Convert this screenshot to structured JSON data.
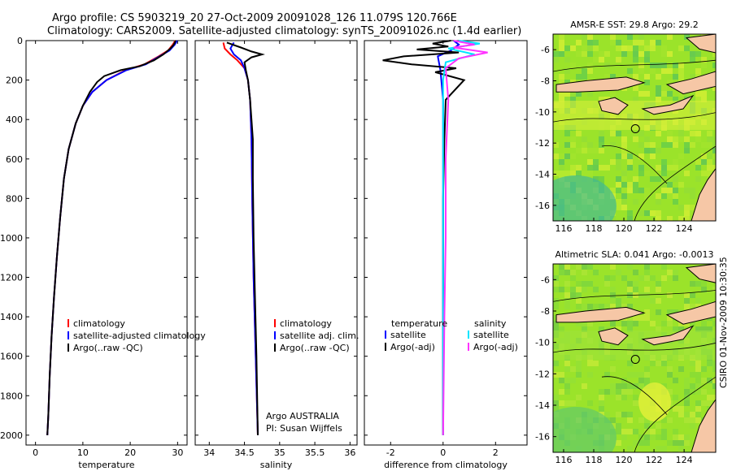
{
  "header": {
    "title_line1": "Argo profile: CS 5903219_20 27-Oct-2009 20091028_126 11.079S 120.766E",
    "title_line2": "Climatology: CARS2009. Satellite-adjusted climatology: synTS_20091026.nc (1.4d earlier)"
  },
  "colors": {
    "climatology": "#ff0000",
    "satellite": "#0000ff",
    "argo": "#000000",
    "sal_satellite": "#00e5ff",
    "sal_argo": "#ff33ff",
    "land": "#f6c7a6",
    "ocean_base": "#9be32a"
  },
  "chart_data": [
    {
      "type": "line",
      "name": "temperature-profile",
      "xlabel": "temperature",
      "ylabel": "",
      "xlim": [
        -2,
        32
      ],
      "ylim": [
        2050,
        0
      ],
      "xticks": [
        0,
        10,
        20,
        30
      ],
      "yticks": [
        0,
        200,
        400,
        600,
        800,
        1000,
        1200,
        1400,
        1600,
        1800,
        2000
      ],
      "legend": [
        "climatology",
        "satellite-adjusted climatology",
        "Argo(..raw -QC)"
      ],
      "series": [
        {
          "name": "climatology",
          "color": "#ff0000",
          "points": [
            [
              29.5,
              0
            ],
            [
              29,
              20
            ],
            [
              28,
              50
            ],
            [
              26,
              80
            ],
            [
              23,
              120
            ],
            [
              19,
              150
            ],
            [
              15,
              200
            ],
            [
              12,
              260
            ],
            [
              10,
              330
            ],
            [
              8.5,
              420
            ],
            [
              7,
              550
            ],
            [
              6,
              700
            ],
            [
              5.2,
              900
            ],
            [
              4.5,
              1100
            ],
            [
              3.9,
              1300
            ],
            [
              3.4,
              1500
            ],
            [
              3,
              1700
            ],
            [
              2.7,
              1900
            ],
            [
              2.5,
              2000
            ]
          ]
        },
        {
          "name": "satellite-adjusted climatology",
          "color": "#0000ff",
          "points": [
            [
              29.9,
              0
            ],
            [
              29.4,
              20
            ],
            [
              28.3,
              50
            ],
            [
              26.2,
              80
            ],
            [
              23.3,
              120
            ],
            [
              19.2,
              150
            ],
            [
              15,
              200
            ],
            [
              12,
              260
            ],
            [
              10,
              330
            ],
            [
              8.5,
              420
            ],
            [
              7,
              550
            ],
            [
              6,
              700
            ],
            [
              5.2,
              900
            ],
            [
              4.5,
              1100
            ],
            [
              3.9,
              1300
            ],
            [
              3.4,
              1500
            ],
            [
              3,
              1700
            ],
            [
              2.7,
              1900
            ],
            [
              2.5,
              2000
            ]
          ]
        },
        {
          "name": "Argo(..raw -QC)",
          "color": "#000000",
          "points": [
            [
              29.6,
              0
            ],
            [
              29.2,
              20
            ],
            [
              28.5,
              40
            ],
            [
              27,
              70
            ],
            [
              25,
              100
            ],
            [
              22,
              130
            ],
            [
              18,
              150
            ],
            [
              14.5,
              180
            ],
            [
              13,
              210
            ],
            [
              11.5,
              260
            ],
            [
              10,
              330
            ],
            [
              8.5,
              420
            ],
            [
              7,
              550
            ],
            [
              6,
              700
            ],
            [
              5.2,
              900
            ],
            [
              4.5,
              1100
            ],
            [
              3.9,
              1300
            ],
            [
              3.4,
              1500
            ],
            [
              3,
              1700
            ],
            [
              2.7,
              1900
            ],
            [
              2.5,
              2000
            ]
          ]
        }
      ]
    },
    {
      "type": "line",
      "name": "salinity-profile",
      "xlabel": "salinity",
      "xlim": [
        33.8,
        36.1
      ],
      "ylim": [
        2050,
        0
      ],
      "xticks": [
        34,
        34.5,
        35,
        35.5,
        36
      ],
      "legend": [
        "climatology",
        "satellite adj. clim.",
        "Argo(..raw -QC)"
      ],
      "series": [
        {
          "name": "climatology",
          "color": "#ff0000",
          "points": [
            [
              34.2,
              10
            ],
            [
              34.22,
              40
            ],
            [
              34.3,
              70
            ],
            [
              34.4,
              100
            ],
            [
              34.5,
              140
            ],
            [
              34.55,
              200
            ],
            [
              34.58,
              300
            ],
            [
              34.6,
              500
            ],
            [
              34.61,
              800
            ],
            [
              34.63,
              1200
            ],
            [
              34.66,
              1600
            ],
            [
              34.69,
              2000
            ]
          ]
        },
        {
          "name": "satellite adj. clim.",
          "color": "#0000ff",
          "points": [
            [
              34.35,
              10
            ],
            [
              34.3,
              40
            ],
            [
              34.35,
              70
            ],
            [
              34.45,
              100
            ],
            [
              34.5,
              140
            ],
            [
              34.55,
              200
            ],
            [
              34.58,
              300
            ],
            [
              34.6,
              500
            ],
            [
              34.61,
              800
            ],
            [
              34.63,
              1200
            ],
            [
              34.66,
              1600
            ],
            [
              34.69,
              2000
            ]
          ]
        },
        {
          "name": "Argo(..raw -QC)",
          "color": "#000000",
          "points": [
            [
              34.25,
              10
            ],
            [
              34.45,
              35
            ],
            [
              34.6,
              55
            ],
            [
              34.75,
              70
            ],
            [
              34.6,
              85
            ],
            [
              34.5,
              110
            ],
            [
              34.52,
              150
            ],
            [
              34.55,
              200
            ],
            [
              34.58,
              300
            ],
            [
              34.62,
              500
            ],
            [
              34.62,
              700
            ],
            [
              34.63,
              1000
            ],
            [
              34.65,
              1300
            ],
            [
              34.67,
              1600
            ],
            [
              34.69,
              2000
            ]
          ]
        }
      ],
      "annotation": [
        "Argo AUSTRALIA",
        "PI: Susan Wijffels"
      ]
    },
    {
      "type": "line",
      "name": "difference-profile",
      "xlabel": "difference from climatology",
      "xlim": [
        -3,
        3.2
      ],
      "ylim": [
        2050,
        0
      ],
      "xticks": [
        -2,
        0,
        2
      ],
      "legend_left_title": "temperature",
      "legend_right_title": "salinity",
      "legend": [
        "satellite",
        "Argo(-adj)",
        "satellite",
        "Argo(-adj)"
      ],
      "series": [
        {
          "name": "temperature satellite",
          "color": "#0000ff",
          "points": [
            [
              0.4,
              0
            ],
            [
              0.6,
              20
            ],
            [
              0.3,
              50
            ],
            [
              -0.2,
              80
            ],
            [
              -0.1,
              150
            ],
            [
              0,
              300
            ],
            [
              0,
              600
            ],
            [
              0,
              1000
            ],
            [
              0,
              1400
            ],
            [
              0,
              1800
            ],
            [
              0,
              2000
            ]
          ]
        },
        {
          "name": "temperature Argo(-adj)",
          "color": "#000000",
          "points": [
            [
              0.3,
              0
            ],
            [
              -0.4,
              15
            ],
            [
              0.2,
              30
            ],
            [
              -1,
              45
            ],
            [
              0.6,
              60
            ],
            [
              -1.5,
              80
            ],
            [
              -2.3,
              100
            ],
            [
              -1.2,
              120
            ],
            [
              0.5,
              140
            ],
            [
              -0.3,
              160
            ],
            [
              0.8,
              200
            ],
            [
              0.1,
              300
            ],
            [
              0.05,
              500
            ],
            [
              0,
              800
            ],
            [
              0,
              1200
            ],
            [
              0,
              1600
            ],
            [
              0,
              2000
            ]
          ]
        },
        {
          "name": "salinity satellite",
          "color": "#00e5ff",
          "points": [
            [
              0.6,
              0
            ],
            [
              1.4,
              15
            ],
            [
              0.2,
              40
            ],
            [
              1.2,
              70
            ],
            [
              0.1,
              110
            ],
            [
              0,
              200
            ],
            [
              0,
              500
            ],
            [
              0,
              900
            ],
            [
              0,
              1300
            ],
            [
              0,
              1700
            ],
            [
              0,
              2000
            ]
          ]
        },
        {
          "name": "salinity Argo(-adj)",
          "color": "#ff33ff",
          "points": [
            [
              0.4,
              0
            ],
            [
              1.2,
              20
            ],
            [
              0.4,
              35
            ],
            [
              1.7,
              60
            ],
            [
              0.6,
              90
            ],
            [
              0.1,
              140
            ],
            [
              0.2,
              300
            ],
            [
              0.1,
              600
            ],
            [
              0.1,
              1000
            ],
            [
              0.05,
              1400
            ],
            [
              0,
              2000
            ]
          ]
        }
      ]
    },
    {
      "type": "heatmap",
      "name": "sst-map",
      "title": "AMSR-E SST: 29.8  Argo: 29.2",
      "xticks": [
        116,
        118,
        120,
        122,
        124
      ],
      "yticks": [
        -6,
        -8,
        -10,
        -12,
        -14,
        -16
      ],
      "xlim": [
        115.3,
        126.1
      ],
      "ylim": [
        -17,
        -5
      ],
      "argo_position": [
        120.766,
        -11.079
      ]
    },
    {
      "type": "heatmap",
      "name": "sla-map",
      "title": "Altimetric SLA: 0.041  Argo: -0.0013",
      "xticks": [
        116,
        118,
        120,
        122,
        124
      ],
      "yticks": [
        -6,
        -8,
        -10,
        -12,
        -14,
        -16
      ],
      "xlim": [
        115.3,
        126.1
      ],
      "ylim": [
        -17,
        -5
      ],
      "argo_position": [
        120.766,
        -11.079
      ]
    }
  ],
  "credit": "CSIRO 01-Nov-2009 10:30:35"
}
